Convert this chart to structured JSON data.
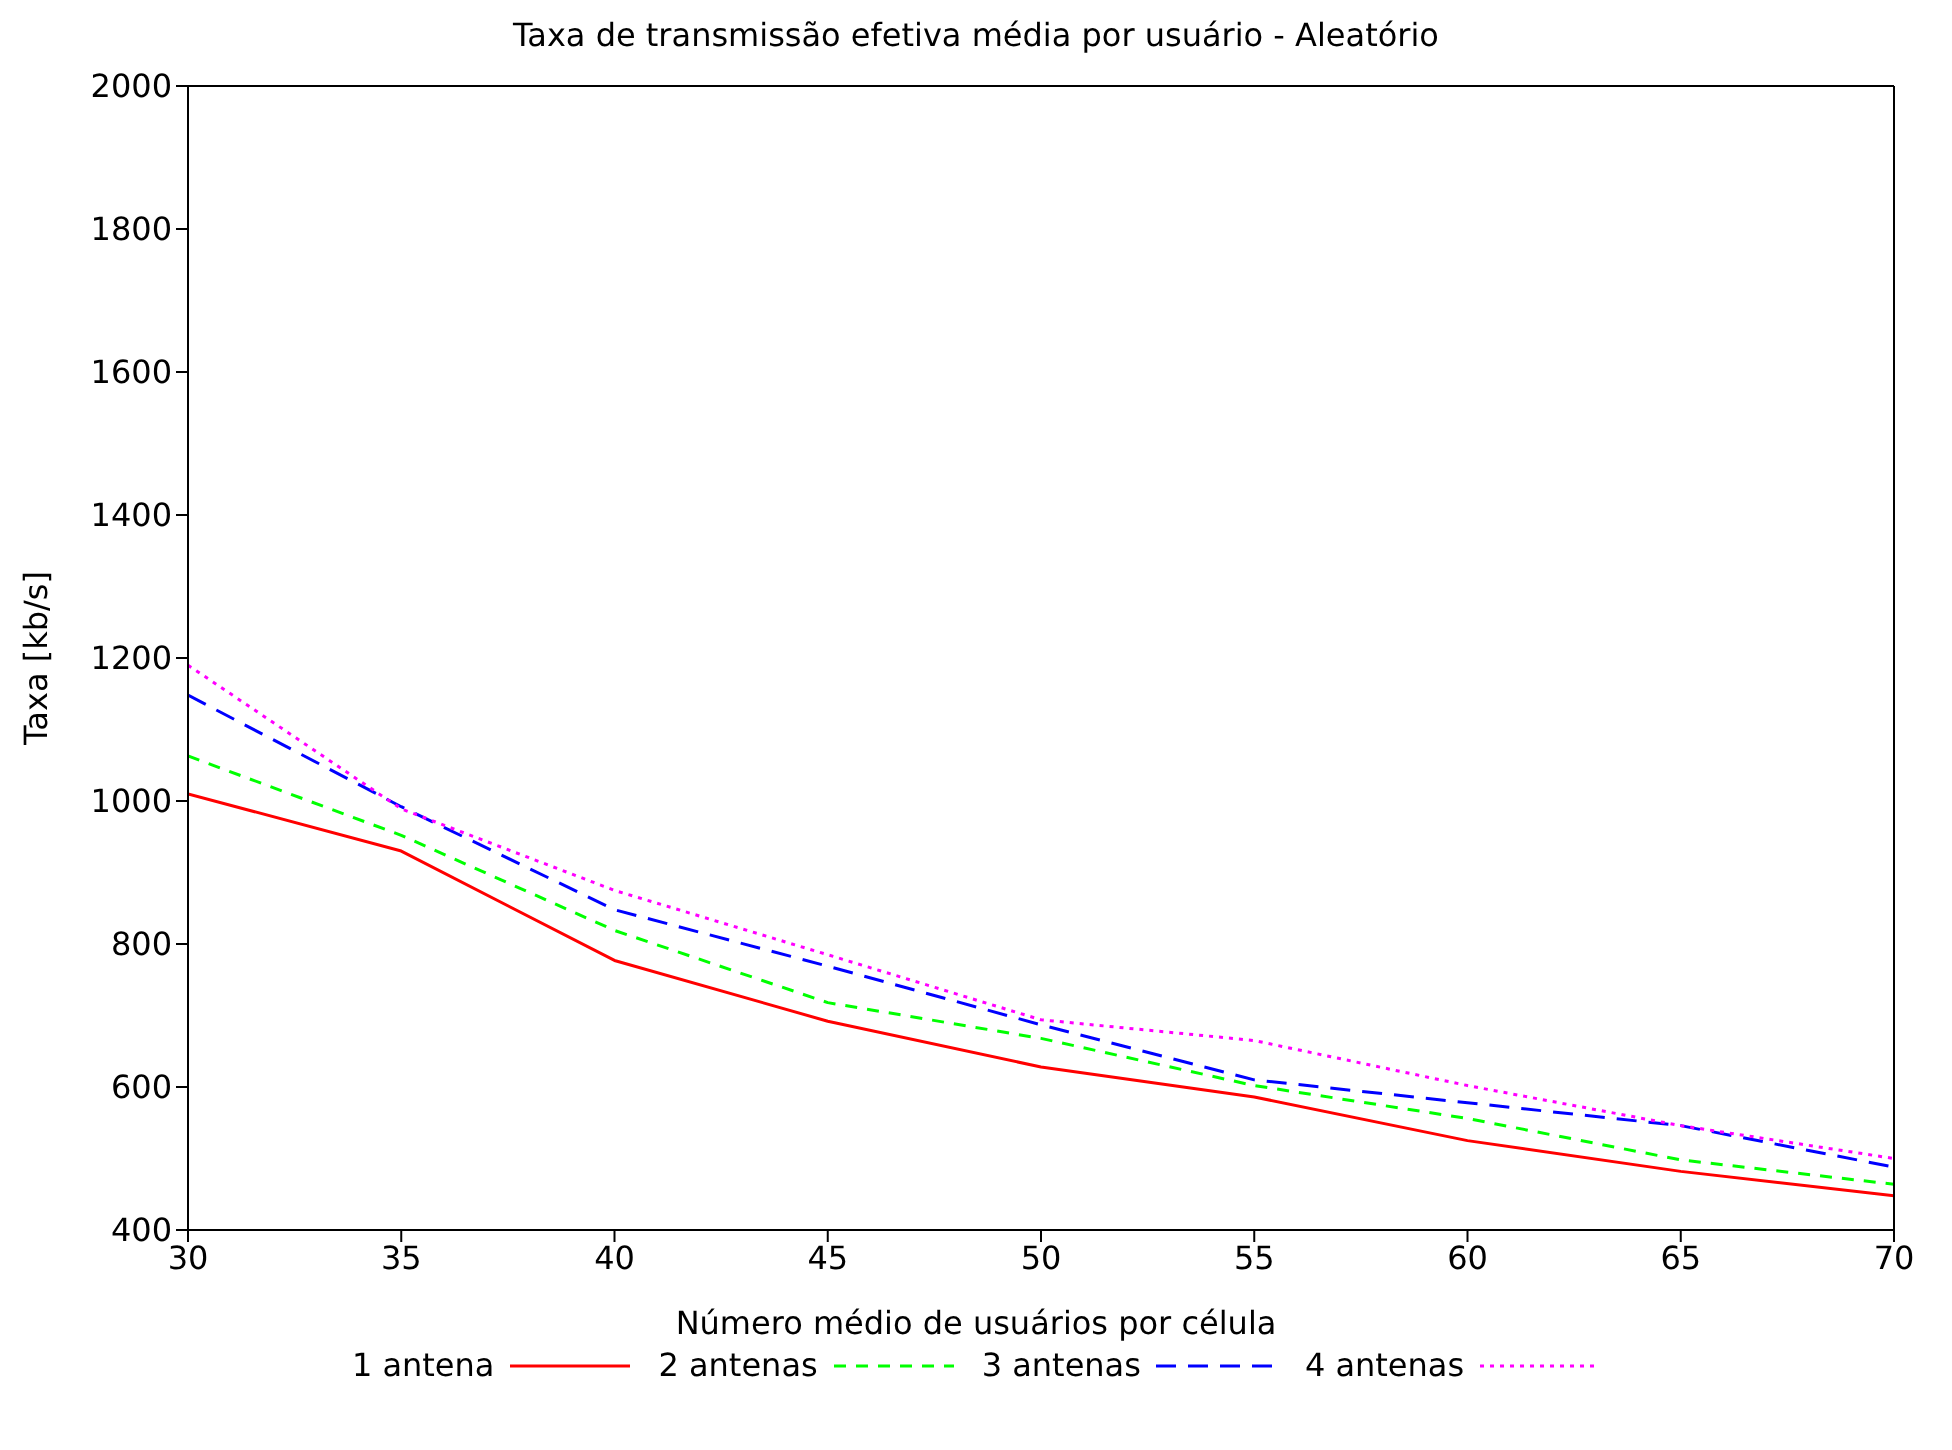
{
  "chart_data": {
    "type": "line",
    "title": "Taxa de transmissão efetiva média por usuário - Aleatório",
    "xlabel": "Número médio de usuários por célula",
    "ylabel": "Taxa [kb/s]",
    "x": [
      30,
      35,
      40,
      45,
      50,
      55,
      60,
      65,
      70
    ],
    "series": [
      {
        "name": "1 antena",
        "color": "#ff0000",
        "line_style": "solid",
        "values": [
          1010,
          930,
          777,
          692,
          628,
          586,
          525,
          482,
          448
        ]
      },
      {
        "name": "2 antenas",
        "color": "#00ff00",
        "line_style": "dashed",
        "values": [
          1063,
          952,
          819,
          718,
          668,
          602,
          556,
          498,
          464
        ]
      },
      {
        "name": "3 antenas",
        "color": "#0000ff",
        "line_style": "dashed",
        "values": [
          1148,
          992,
          848,
          769,
          687,
          610,
          578,
          546,
          488
        ]
      },
      {
        "name": "4 antenas",
        "color": "#ff00ff",
        "line_style": "dotted",
        "values": [
          1190,
          989,
          875,
          785,
          694,
          665,
          602,
          546,
          500
        ]
      }
    ],
    "xlim": [
      30,
      70
    ],
    "xticks": [
      30,
      35,
      40,
      45,
      50,
      55,
      60,
      65,
      70
    ],
    "ylim": [
      400,
      2000
    ],
    "yticks": [
      400,
      600,
      800,
      1000,
      1200,
      1400,
      1600,
      1800,
      2000
    ],
    "grid": false,
    "legend": "bottom",
    "marker": "none"
  }
}
